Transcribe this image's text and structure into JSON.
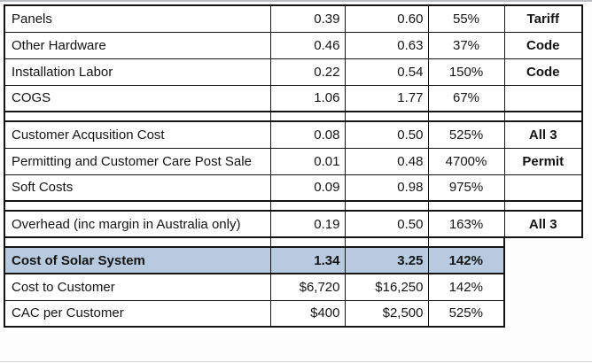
{
  "page": {
    "background": "#fdfdfd",
    "edge_line_color": "#b9bdc1"
  },
  "table": {
    "border_color": "#141414",
    "total_row_bg": "#b8cadf",
    "columns": {
      "label_width": 300,
      "value1_width": 84,
      "value2_width": 94,
      "percent_width": 86,
      "tag_width": 88
    },
    "rows": [
      {
        "kind": "data",
        "label": "Panels",
        "value1": "0.39",
        "value2": "0.60",
        "pct": "55%",
        "tag": "Tariff",
        "tag_col": true,
        "sec_top": true,
        "sec_bottom": false
      },
      {
        "kind": "data",
        "label": "Other Hardware",
        "value1": "0.46",
        "value2": "0.63",
        "pct": "37%",
        "tag": "Code",
        "tag_col": true,
        "sec_top": false,
        "sec_bottom": false
      },
      {
        "kind": "data",
        "label": "Installation Labor",
        "value1": "0.22",
        "value2": "0.54",
        "pct": "150%",
        "tag": "Code",
        "tag_col": true,
        "sec_top": false,
        "sec_bottom": false
      },
      {
        "kind": "data",
        "label": "COGS",
        "value1": "1.06",
        "value2": "1.77",
        "pct": "67%",
        "tag": "",
        "tag_col": true,
        "sec_top": false,
        "sec_bottom": true
      },
      {
        "kind": "spacer",
        "label": "",
        "value1": "",
        "value2": "",
        "pct": "",
        "tag": "",
        "tag_col": true,
        "sec_top": false,
        "sec_bottom": false
      },
      {
        "kind": "data",
        "label": "Customer Acqusition Cost",
        "value1": "0.08",
        "value2": "0.50",
        "pct": "525%",
        "tag": "All 3",
        "tag_col": true,
        "sec_top": true,
        "sec_bottom": false
      },
      {
        "kind": "data",
        "label": "Permitting and Customer Care Post Sale",
        "value1": "0.01",
        "value2": "0.48",
        "pct": "4700%",
        "tag": "Permit",
        "tag_col": true,
        "sec_top": false,
        "sec_bottom": false
      },
      {
        "kind": "data",
        "label": "Soft Costs",
        "value1": "0.09",
        "value2": "0.98",
        "pct": "975%",
        "tag": "",
        "tag_col": true,
        "sec_top": false,
        "sec_bottom": true
      },
      {
        "kind": "spacer",
        "label": "",
        "value1": "",
        "value2": "",
        "pct": "",
        "tag": "",
        "tag_col": true,
        "sec_top": false,
        "sec_bottom": false
      },
      {
        "kind": "data",
        "label": "Overhead (inc margin in Australia only)",
        "value1": "0.19",
        "value2": "0.50",
        "pct": "163%",
        "tag": "All 3",
        "tag_col": true,
        "sec_top": true,
        "sec_bottom": true
      },
      {
        "kind": "spacer",
        "label": "",
        "value1": "",
        "value2": "",
        "pct": "",
        "tag": "",
        "tag_col": false,
        "sec_top": false,
        "sec_bottom": false
      },
      {
        "kind": "total",
        "label": "Cost of Solar System",
        "value1": "1.34",
        "value2": "3.25",
        "pct": "142%",
        "tag": "",
        "tag_col": false,
        "sec_top": true,
        "sec_bottom": true
      },
      {
        "kind": "data",
        "label": "Cost to Customer",
        "value1": "$6,720",
        "value2": "$16,250",
        "pct": "142%",
        "tag": "",
        "tag_col": false,
        "sec_top": false,
        "sec_bottom": false
      },
      {
        "kind": "data",
        "label": "CAC per Customer",
        "value1": "$400",
        "value2": "$2,500",
        "pct": "525%",
        "tag": "",
        "tag_col": false,
        "sec_top": false,
        "sec_bottom": true
      }
    ]
  }
}
